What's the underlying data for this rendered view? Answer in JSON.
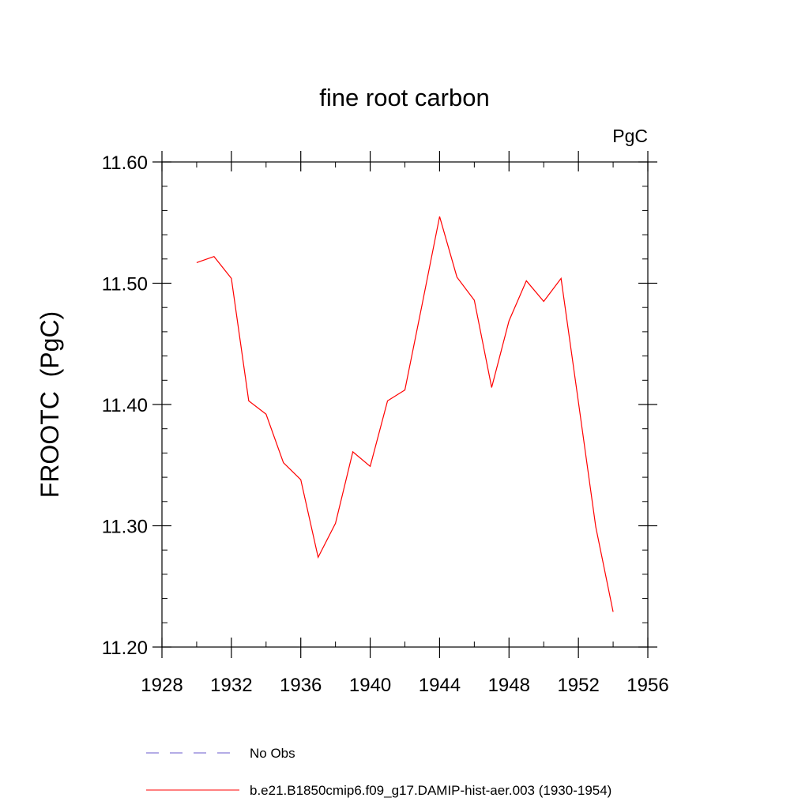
{
  "chart_data": {
    "type": "line",
    "title": "fine root carbon",
    "units_label": "PgC",
    "ylabel": "FROOTC  (PgC)",
    "xlabel": "",
    "xlim": [
      1928,
      1956
    ],
    "ylim": [
      11.2,
      11.6
    ],
    "x_ticks": [
      1928,
      1932,
      1936,
      1940,
      1944,
      1948,
      1952,
      1956
    ],
    "x_tick_labels": [
      "1928",
      "1932",
      "1936",
      "1940",
      "1944",
      "1948",
      "1952",
      "1956"
    ],
    "y_ticks": [
      11.2,
      11.3,
      11.4,
      11.5,
      11.6
    ],
    "y_tick_labels": [
      "11.20",
      "11.30",
      "11.40",
      "11.50",
      "11.60"
    ],
    "grid": false,
    "legend_position": "bottom",
    "series": [
      {
        "name": "No Obs",
        "color": "#6a5acd",
        "dash": "dashed",
        "x": [],
        "values": []
      },
      {
        "name": "b.e21.B1850cmip6.f09_g17.DAMIP-hist-aer.003 (1930-1954)",
        "color": "#ff0000",
        "dash": "solid",
        "x": [
          1930,
          1931,
          1932,
          1933,
          1934,
          1935,
          1936,
          1937,
          1938,
          1939,
          1940,
          1941,
          1942,
          1943,
          1944,
          1945,
          1946,
          1947,
          1948,
          1949,
          1950,
          1951,
          1952,
          1953,
          1954
        ],
        "values": [
          11.517,
          11.522,
          11.504,
          11.403,
          11.392,
          11.352,
          11.338,
          11.274,
          11.302,
          11.361,
          11.349,
          11.403,
          11.412,
          11.483,
          11.555,
          11.505,
          11.486,
          11.414,
          11.469,
          11.502,
          11.485,
          11.504,
          11.402,
          11.299,
          11.229
        ]
      }
    ]
  }
}
